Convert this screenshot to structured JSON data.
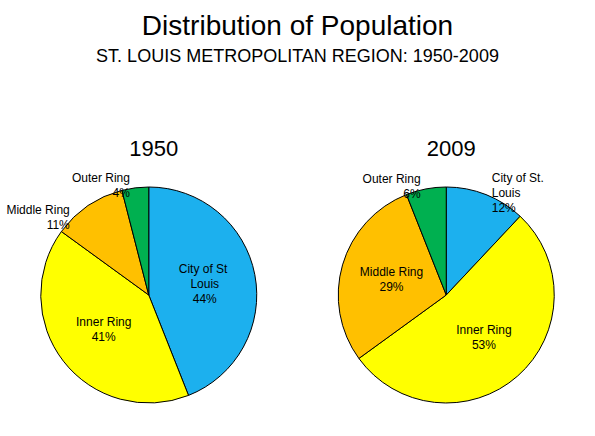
{
  "title": "Distribution of Population",
  "subtitle": "ST. LOUIS METROPOLITAN REGION: 1950-2009",
  "chart_data": [
    {
      "type": "pie",
      "title": "1950",
      "categories": [
        "City of St Louis",
        "Inner Ring",
        "Middle Ring",
        "Outer Ring"
      ],
      "values": [
        44,
        41,
        11,
        4
      ],
      "value_labels": [
        "44%",
        "41%",
        "11%",
        "4%"
      ],
      "colors": [
        "#1cb0ee",
        "#ffff00",
        "#ffc000",
        "#00b050"
      ],
      "data_labels": true
    },
    {
      "type": "pie",
      "title": "2009",
      "categories": [
        "City of St. Louis",
        "Inner Ring",
        "Middle Ring",
        "Outer Ring"
      ],
      "values": [
        12,
        53,
        29,
        6
      ],
      "value_labels": [
        "12%",
        "53%",
        "29%",
        "6%"
      ],
      "colors": [
        "#1cb0ee",
        "#ffff00",
        "#ffc000",
        "#00b050"
      ],
      "data_labels": true
    }
  ]
}
